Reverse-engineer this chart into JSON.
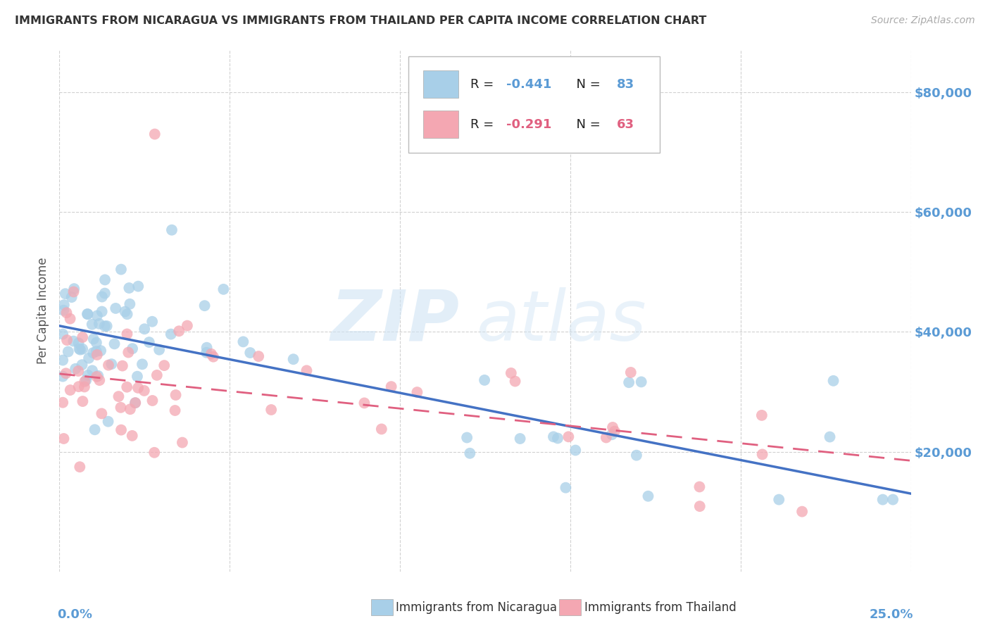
{
  "title": "IMMIGRANTS FROM NICARAGUA VS IMMIGRANTS FROM THAILAND PER CAPITA INCOME CORRELATION CHART",
  "source": "Source: ZipAtlas.com",
  "ylabel": "Per Capita Income",
  "yticks": [
    20000,
    40000,
    60000,
    80000
  ],
  "ytick_labels": [
    "$20,000",
    "$40,000",
    "$60,000",
    "$80,000"
  ],
  "watermark_zip": "ZIP",
  "watermark_atlas": "atlas",
  "legend_r1_label": "R = ",
  "legend_r1_val": "-0.441",
  "legend_n1_label": "N = ",
  "legend_n1_val": "83",
  "legend_r2_label": "R = ",
  "legend_r2_val": "-0.291",
  "legend_n2_label": "N = ",
  "legend_n2_val": "63",
  "color_nicaragua": "#a8cfe8",
  "color_thailand": "#f4a7b2",
  "color_nicaragua_line": "#4472c4",
  "color_thailand_line": "#e06080",
  "color_ytick": "#5b9bd5",
  "color_xtick": "#5b9bd5",
  "background": "#ffffff",
  "xlim": [
    0.0,
    0.25
  ],
  "ylim": [
    0,
    87000
  ],
  "nicaragua_fit_x": [
    0.0,
    0.25
  ],
  "nicaragua_fit_y": [
    41000,
    13000
  ],
  "thailand_fit_x": [
    0.0,
    0.25
  ],
  "thailand_fit_y": [
    33000,
    18500
  ],
  "seed": 42
}
